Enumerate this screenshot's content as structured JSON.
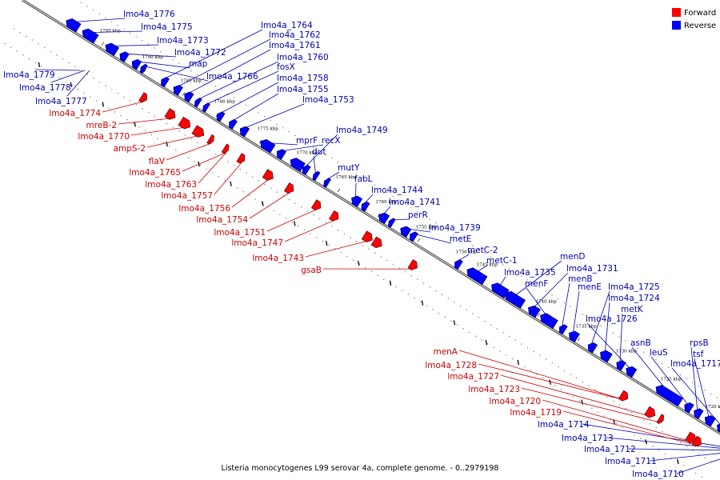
{
  "caption": "Listeria monocytogenes L99 serovar 4a, complete genome. - 0..2979198",
  "legend": [
    {
      "label": "Forward",
      "color": "#ff0000"
    },
    {
      "label": "Reverse",
      "color": "#0000ff"
    }
  ],
  "colors": {
    "forward": "#ff0000",
    "reverse": "#0000ff",
    "forward_label": "#cc0000",
    "reverse_label": "#0000aa",
    "backbone": "#888888"
  },
  "ticks": [
    "1795 kbp",
    "1790 kbp",
    "1785 kbp",
    "1780 kbp",
    "1775 kbp",
    "1770 kbp",
    "1765 kbp",
    "1760 kbp",
    "1755 kbp",
    "1750 kbp",
    "1745 kbp",
    "1740 kbp",
    "1735 kbp",
    "1730 kbp",
    "1725 kbp",
    "1720 kbp"
  ],
  "reverse_genes": [
    "lmo4a_1776",
    "lmo4a_1775",
    "lmo4a_1773",
    "lmo4a_1772",
    "map",
    "lmo4a_1766",
    "lmo4a_1764",
    "lmo4a_1762",
    "lmo4a_1761",
    "lmo4a_1760",
    "fosX",
    "lmo4a_1758",
    "lmo4a_1755",
    "lmo4a_1753",
    "lmo4a_1779",
    "lmo4a_1778",
    "lmo4a_1777",
    "lmo4a_1749",
    "mprF",
    "dut",
    "recX",
    "mutY",
    "fabL",
    "lmo4a_1744",
    "lmo4a_1741",
    "perR",
    "lmo4a_1739",
    "metE",
    "metC-2",
    "metC-1",
    "menD",
    "lmo4a_1735",
    "lmo4a_1731",
    "menF",
    "menB",
    "menE",
    "lmo4a_1725",
    "lmo4a_1724",
    "metK",
    "lmo4a_1726",
    "asnB",
    "rpsB",
    "leuS",
    "tsf",
    "lmo4a_1717",
    "lmo4a_1714",
    "lmo4a_1713",
    "lmo4a_1712",
    "lmo4a_1711",
    "lmo4a_1710"
  ],
  "forward_genes": [
    "lmo4a_1774",
    "mreB-2",
    "lmo4a_1770",
    "ampS-2",
    "flaV",
    "lmo4a_1765",
    "lmo4a_1763",
    "lmo4a_1757",
    "lmo4a_1756",
    "lmo4a_1754",
    "lmo4a_1751",
    "lmo4a_1747",
    "lmo4a_1743",
    "gsaB",
    "menA",
    "lmo4a_1728",
    "lmo4a_1727",
    "lmo4a_1723",
    "lmo4a_1720",
    "lmo4a_1719"
  ]
}
